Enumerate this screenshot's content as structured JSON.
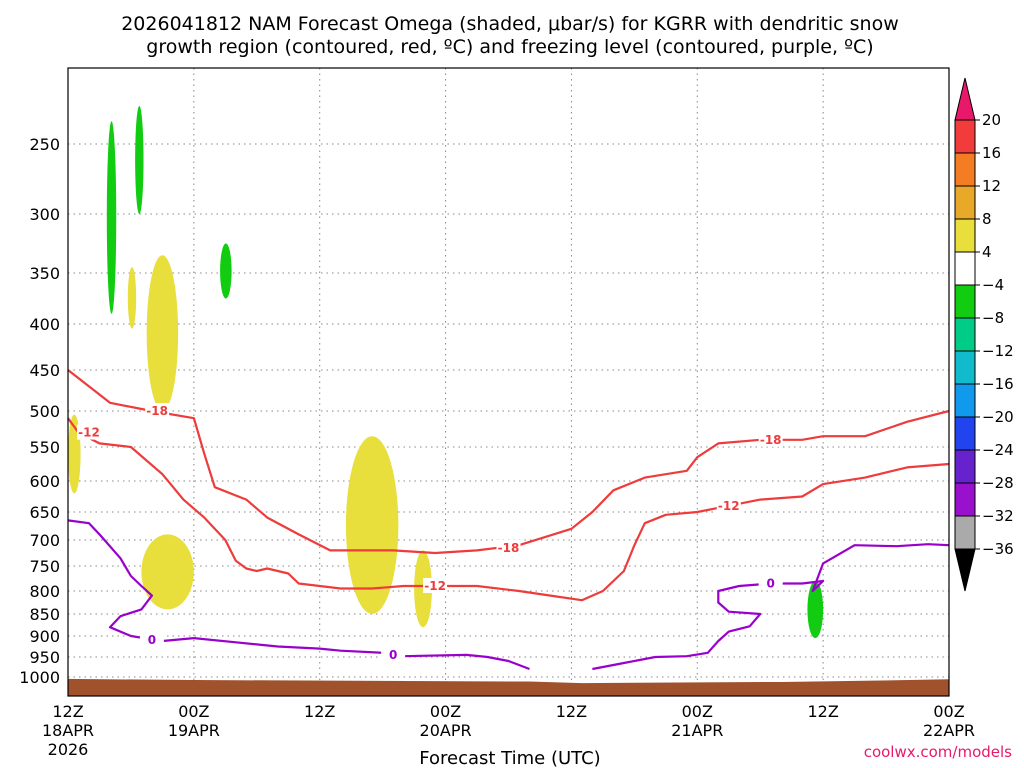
{
  "title_line1": "2026041812 NAM Forecast Omega (shaded, μbar/s) for KGRR with dendritic snow",
  "title_line2": "growth region (contoured, red, ºC) and freezing level (contoured, purple, ºC)",
  "xlabel": "Forecast Time (UTC)",
  "credit": "coolwx.com/models",
  "chart_data": {
    "type": "contour",
    "x_unit": "forecast hours from 2026-04-18 12Z",
    "xlim": [
      0,
      84
    ],
    "ylim": [
      1050,
      200
    ],
    "y_axis": "pressure (hPa), log-style vertical",
    "x_ticks": [
      {
        "x": 0,
        "top": "12Z",
        "mid": "18APR",
        "bot": "2026"
      },
      {
        "x": 12,
        "top": "00Z",
        "mid": "19APR",
        "bot": ""
      },
      {
        "x": 24,
        "top": "12Z",
        "mid": "",
        "bot": ""
      },
      {
        "x": 36,
        "top": "00Z",
        "mid": "20APR",
        "bot": ""
      },
      {
        "x": 48,
        "top": "12Z",
        "mid": "",
        "bot": ""
      },
      {
        "x": 60,
        "top": "00Z",
        "mid": "21APR",
        "bot": ""
      },
      {
        "x": 72,
        "top": "12Z",
        "mid": "",
        "bot": ""
      },
      {
        "x": 84,
        "top": "00Z",
        "mid": "22APR",
        "bot": ""
      }
    ],
    "y_ticks": [
      250,
      300,
      350,
      400,
      450,
      500,
      550,
      600,
      650,
      700,
      750,
      800,
      850,
      900,
      950,
      1000
    ],
    "colorbar": {
      "labels": [
        "20",
        "16",
        "12",
        "8",
        "4",
        "−4",
        "−8",
        "−12",
        "−16",
        "−20",
        "−24",
        "−28",
        "−32",
        "−36"
      ],
      "colors": [
        "#e8196a",
        "#f23c3c",
        "#f47c22",
        "#e8a828",
        "#e8de3c",
        "#ffffff",
        "#11cc11",
        "#00cc88",
        "#11bbcc",
        "#1199ee",
        "#2244ee",
        "#6622cc",
        "#9911cc",
        "#aaaaaa",
        "#000000"
      ]
    },
    "isotherm_minus18C": {
      "label": "-18",
      "points": [
        [
          0,
          450
        ],
        [
          2,
          470
        ],
        [
          4,
          490
        ],
        [
          8,
          500
        ],
        [
          12,
          510
        ],
        [
          13,
          560
        ],
        [
          14,
          610
        ],
        [
          17,
          630
        ],
        [
          19,
          660
        ],
        [
          22,
          690
        ],
        [
          25,
          720
        ],
        [
          28,
          720
        ],
        [
          31,
          720
        ],
        [
          35,
          725
        ],
        [
          39,
          720
        ],
        [
          43,
          710
        ],
        [
          48,
          680
        ],
        [
          50,
          650
        ],
        [
          52,
          615
        ],
        [
          55,
          595
        ],
        [
          59,
          585
        ],
        [
          60,
          565
        ],
        [
          62,
          545
        ],
        [
          66,
          540
        ],
        [
          70,
          540
        ],
        [
          72,
          535
        ],
        [
          76,
          535
        ],
        [
          80,
          515
        ],
        [
          84,
          500
        ]
      ],
      "label_positions": [
        [
          8.5,
          500
        ],
        [
          42,
          715
        ],
        [
          67,
          540
        ]
      ]
    },
    "isotherm_minus12C": {
      "label": "-12",
      "points": [
        [
          0,
          510
        ],
        [
          1,
          530
        ],
        [
          3,
          545
        ],
        [
          6,
          550
        ],
        [
          9,
          590
        ],
        [
          11,
          630
        ],
        [
          13,
          660
        ],
        [
          15,
          700
        ],
        [
          16,
          740
        ],
        [
          17,
          755
        ],
        [
          18,
          760
        ],
        [
          19,
          755
        ],
        [
          20,
          760
        ],
        [
          21,
          765
        ],
        [
          22,
          785
        ],
        [
          24,
          790
        ],
        [
          26,
          795
        ],
        [
          29,
          795
        ],
        [
          32,
          790
        ],
        [
          35,
          790
        ],
        [
          39,
          790
        ],
        [
          43,
          800
        ],
        [
          46,
          810
        ],
        [
          49,
          820
        ],
        [
          51,
          800
        ],
        [
          53,
          760
        ],
        [
          54,
          710
        ],
        [
          55,
          670
        ],
        [
          57,
          655
        ],
        [
          60,
          650
        ],
        [
          63,
          640
        ],
        [
          66,
          630
        ],
        [
          70,
          625
        ],
        [
          72,
          605
        ],
        [
          76,
          595
        ],
        [
          80,
          580
        ],
        [
          84,
          575
        ]
      ],
      "label_positions": [
        [
          2,
          530
        ],
        [
          35,
          790
        ],
        [
          63,
          640
        ]
      ]
    },
    "freezing_level_0C": {
      "label": "0",
      "segments": [
        [
          [
            0,
            665
          ],
          [
            2,
            670
          ],
          [
            3,
            690
          ],
          [
            5,
            735
          ],
          [
            6,
            770
          ],
          [
            7,
            790
          ],
          [
            8,
            810
          ],
          [
            7,
            840
          ],
          [
            5,
            855
          ],
          [
            4,
            880
          ],
          [
            6,
            900
          ],
          [
            9,
            912
          ],
          [
            12,
            905
          ],
          [
            16,
            915
          ],
          [
            20,
            925
          ],
          [
            24,
            930
          ],
          [
            26,
            935
          ],
          [
            30,
            940
          ],
          [
            32,
            948
          ],
          [
            38,
            945
          ],
          [
            40,
            950
          ],
          [
            42,
            960
          ],
          [
            43,
            970
          ],
          [
            44,
            980
          ]
        ],
        [
          [
            50,
            980
          ],
          [
            53,
            965
          ],
          [
            56,
            950
          ],
          [
            59,
            948
          ],
          [
            61,
            940
          ],
          [
            62,
            912
          ],
          [
            63,
            890
          ],
          [
            65,
            878
          ],
          [
            66,
            850
          ],
          [
            63,
            845
          ],
          [
            62,
            825
          ],
          [
            62,
            800
          ],
          [
            64,
            790
          ],
          [
            67,
            785
          ],
          [
            70,
            785
          ],
          [
            72,
            780
          ],
          [
            71,
            800
          ],
          [
            72,
            745
          ],
          [
            75,
            710
          ],
          [
            79,
            712
          ],
          [
            82,
            708
          ],
          [
            84,
            710
          ]
        ]
      ],
      "label_positions": [
        [
          8,
          910
        ],
        [
          31,
          945
        ],
        [
          67,
          785
        ]
      ]
    },
    "shaded_regions": [
      {
        "category": "-4 to -8",
        "color": "#11cc11",
        "times": [
          3.7,
          4.6
        ],
        "pressure": [
          235,
          390
        ]
      },
      {
        "category": "-4 to -8",
        "color": "#11cc11",
        "times": [
          6.4,
          7.2
        ],
        "pressure": [
          225,
          300
        ]
      },
      {
        "category": "-4 to -8",
        "color": "#11cc11",
        "times": [
          14.5,
          15.6
        ],
        "pressure": [
          325,
          375
        ]
      },
      {
        "category": "-4 to -8",
        "color": "#11cc11",
        "times": [
          70.5,
          72
        ],
        "pressure": [
          780,
          905
        ]
      },
      {
        "category": "4 to 8",
        "color": "#e8de3c",
        "times": [
          5.7,
          6.5
        ],
        "pressure": [
          345,
          405
        ]
      },
      {
        "category": "4 to 8",
        "color": "#e8de3c",
        "times": [
          7.5,
          10.5
        ],
        "pressure": [
          335,
          500
        ]
      },
      {
        "category": "4 to 8",
        "color": "#e8de3c",
        "times": [
          0,
          1.2
        ],
        "pressure": [
          505,
          620
        ]
      },
      {
        "category": "4 to 8",
        "color": "#e8de3c",
        "times": [
          7,
          12
        ],
        "pressure": [
          690,
          840
        ]
      },
      {
        "category": "4 to 8",
        "color": "#e8de3c",
        "times": [
          26.5,
          31.5
        ],
        "pressure": [
          535,
          850
        ]
      },
      {
        "category": "4 to 8",
        "color": "#e8de3c",
        "times": [
          33,
          34.7
        ],
        "pressure": [
          720,
          880
        ]
      }
    ]
  }
}
